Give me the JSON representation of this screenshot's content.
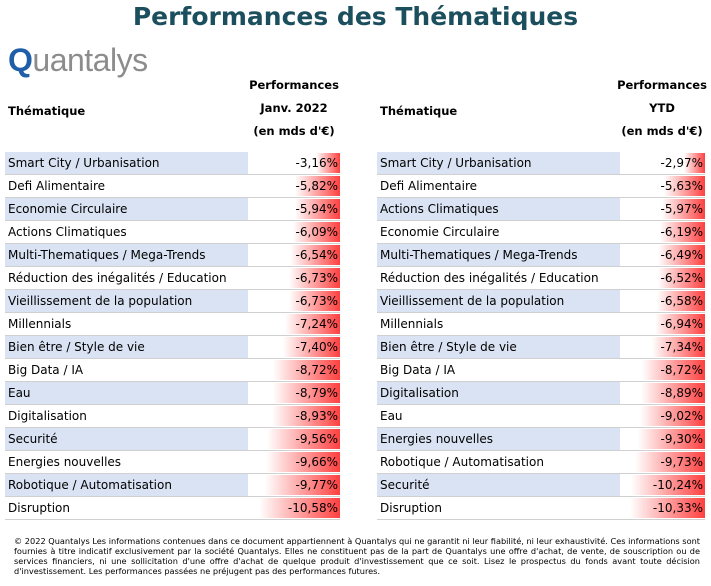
{
  "title": "Performances des Thématiques",
  "logo": "Quantalys",
  "tables": [
    {
      "header": {
        "theme": "Thématique",
        "perf": [
          "Performances",
          "Janv. 2022",
          "(en mds d'€)"
        ]
      },
      "rows": [
        {
          "name": "Smart City / Urbanisation",
          "value": -3.16,
          "label": "-3,16%"
        },
        {
          "name": "Defi Alimentaire",
          "value": -5.82,
          "label": "-5,82%"
        },
        {
          "name": "Economie Circulaire",
          "value": -5.94,
          "label": "-5,94%"
        },
        {
          "name": "Actions Climatiques",
          "value": -6.09,
          "label": "-6,09%"
        },
        {
          "name": "Multi-Thematiques / Mega-Trends",
          "value": -6.54,
          "label": "-6,54%"
        },
        {
          "name": "Réduction des inégalités / Education",
          "value": -6.73,
          "label": "-6,73%"
        },
        {
          "name": "Vieillissement de la population",
          "value": -6.73,
          "label": "-6,73%"
        },
        {
          "name": "Millennials",
          "value": -7.24,
          "label": "-7,24%"
        },
        {
          "name": "Bien être / Style de vie",
          "value": -7.4,
          "label": "-7,40%"
        },
        {
          "name": "Big Data / IA",
          "value": -8.72,
          "label": "-8,72%"
        },
        {
          "name": "Eau",
          "value": -8.79,
          "label": "-8,79%"
        },
        {
          "name": "Digitalisation",
          "value": -8.93,
          "label": "-8,93%"
        },
        {
          "name": "Securité",
          "value": -9.56,
          "label": "-9,56%"
        },
        {
          "name": "Energies nouvelles",
          "value": -9.66,
          "label": "-9,66%"
        },
        {
          "name": "Robotique / Automatisation",
          "value": -9.77,
          "label": "-9,77%"
        },
        {
          "name": "Disruption",
          "value": -10.58,
          "label": "-10,58%"
        }
      ]
    },
    {
      "header": {
        "theme": "Thématique",
        "perf": [
          "Performances",
          "YTD",
          "(en mds d'€)"
        ]
      },
      "rows": [
        {
          "name": "Smart City / Urbanisation",
          "value": -2.97,
          "label": "-2,97%"
        },
        {
          "name": "Defi Alimentaire",
          "value": -5.63,
          "label": "-5,63%"
        },
        {
          "name": "Actions Climatiques",
          "value": -5.97,
          "label": "-5,97%"
        },
        {
          "name": "Economie Circulaire",
          "value": -6.19,
          "label": "-6,19%"
        },
        {
          "name": "Multi-Thematiques / Mega-Trends",
          "value": -6.49,
          "label": "-6,49%"
        },
        {
          "name": "Réduction des inégalités / Education",
          "value": -6.52,
          "label": "-6,52%"
        },
        {
          "name": "Vieillissement de la population",
          "value": -6.58,
          "label": "-6,58%"
        },
        {
          "name": "Millennials",
          "value": -6.94,
          "label": "-6,94%"
        },
        {
          "name": "Bien être / Style de vie",
          "value": -7.34,
          "label": "-7,34%"
        },
        {
          "name": "Big Data / IA",
          "value": -8.72,
          "label": "-8,72%"
        },
        {
          "name": "Digitalisation",
          "value": -8.89,
          "label": "-8,89%"
        },
        {
          "name": "Eau",
          "value": -9.02,
          "label": "-9,02%"
        },
        {
          "name": "Energies nouvelles",
          "value": -9.3,
          "label": "-9,30%"
        },
        {
          "name": "Robotique / Automatisation",
          "value": -9.73,
          "label": "-9,73%"
        },
        {
          "name": "Securité",
          "value": -10.24,
          "label": "-10,24%"
        },
        {
          "name": "Disruption",
          "value": -10.33,
          "label": "-10,33%"
        }
      ]
    }
  ],
  "footer": "© 2022 Quantalys Les informations contenues dans ce document appartiennent à Quantalys qui ne garantit ni leur fiabilité, ni leur exhaustivité. Ces informations sont fournies à titre indicatif exclusivement par la société Quantalys. Elles ne constituent pas de la part de Quantalys une offre d'achat, de vente, de souscription ou de services financiers, ni une sollicitation d'une offre d'achat de quelque produit d'investissement que ce soit. Lisez le prospectus du fonds avant toute décision d'investissement. Les performances passées ne préjugent pas des performances futures."
}
